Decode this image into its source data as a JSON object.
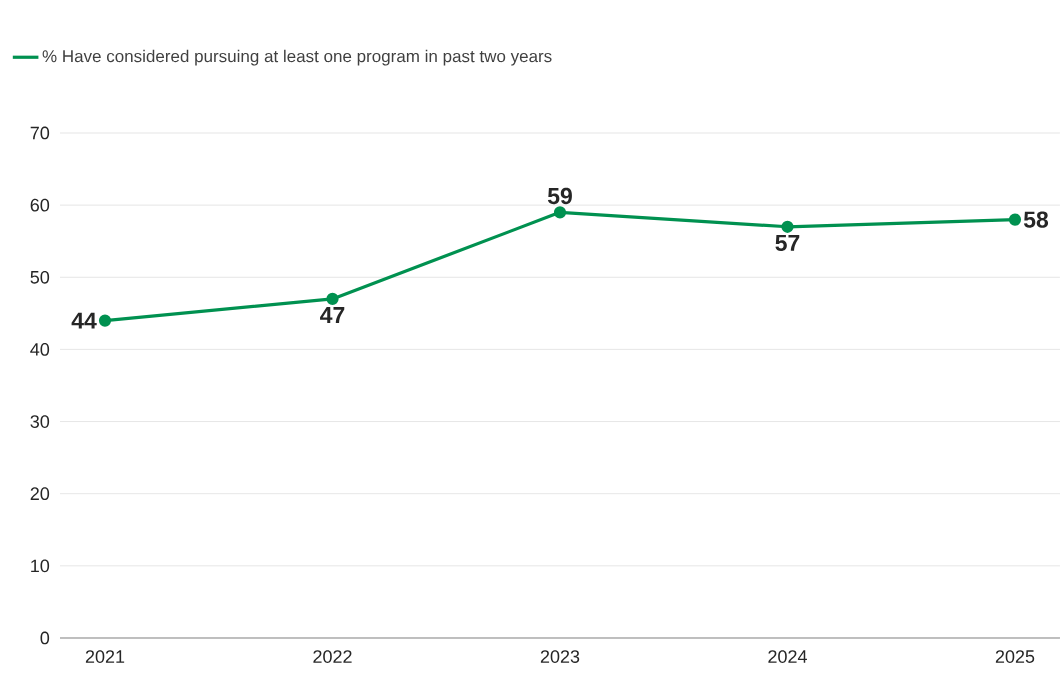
{
  "chart_data": {
    "type": "line",
    "categories": [
      "2021",
      "2022",
      "2023",
      "2024",
      "2025"
    ],
    "series": [
      {
        "name": "% Have considered pursuing at least one program in past two years",
        "color": "#009150",
        "values": [
          44,
          47,
          59,
          57,
          58
        ]
      }
    ],
    "ylim": [
      0,
      70
    ],
    "yticks": [
      0,
      10,
      20,
      30,
      40,
      50,
      60,
      70
    ],
    "grid": "y",
    "legend": "top left",
    "marker": "circle",
    "line_style": "solid",
    "data_labels": true
  }
}
